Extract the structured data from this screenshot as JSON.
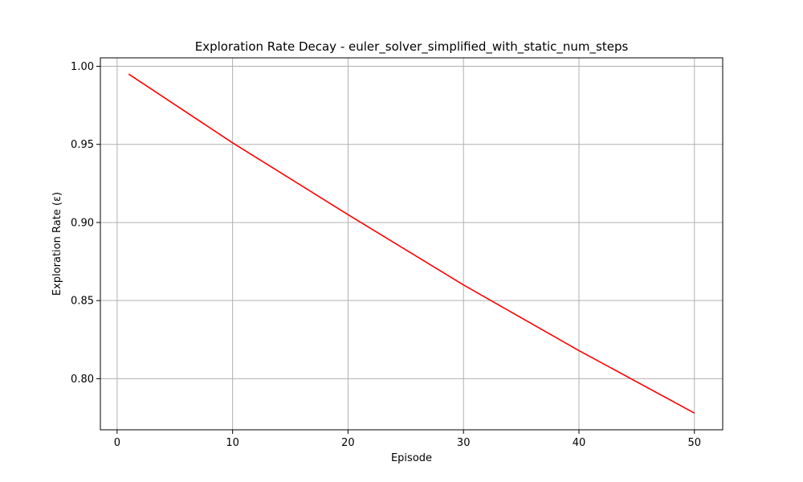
{
  "chart_data": {
    "type": "line",
    "title": "Exploration Rate Decay - euler_solver_simplified_with_static_num_steps",
    "xlabel": "Episode",
    "ylabel": "Exploration Rate (ε)",
    "xlim": [
      -1.45,
      52.45
    ],
    "ylim": [
      0.7673,
      1.0054
    ],
    "xticks": [
      0,
      10,
      20,
      30,
      40,
      50
    ],
    "xtick_labels": [
      "0",
      "10",
      "20",
      "30",
      "40",
      "50"
    ],
    "yticks": [
      0.8,
      0.85,
      0.9,
      0.95,
      1.0
    ],
    "ytick_labels": [
      "0.80",
      "0.85",
      "0.90",
      "0.95",
      "1.00"
    ],
    "grid": true,
    "series": [
      {
        "color": "#ff0000",
        "x": [
          1,
          10,
          20,
          30,
          40,
          50
        ],
        "y": [
          0.995,
          0.951,
          0.905,
          0.86,
          0.818,
          0.778
        ]
      }
    ]
  },
  "colors": {
    "grid": "#b0b0b0",
    "axes": "#000000",
    "background": "#ffffff"
  }
}
